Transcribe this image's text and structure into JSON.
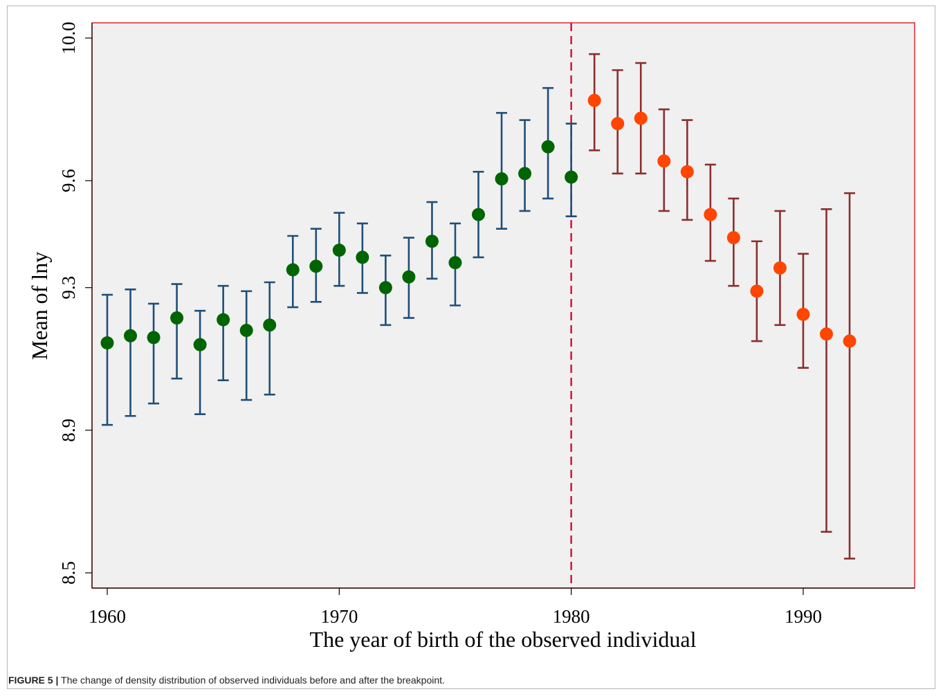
{
  "chart_data": {
    "type": "scatter",
    "title": "",
    "xlabel": "The year of birth of the observed individual",
    "ylabel": "Mean of lny",
    "xlim": [
      1960,
      1992
    ],
    "ylim": [
      8.5,
      10.0
    ],
    "xticks": [
      1960,
      1970,
      1980,
      1990
    ],
    "yticks": [
      8.5,
      8.9,
      9.3,
      9.6,
      10.0
    ],
    "ytick_labels": [
      "8.5",
      "8.9",
      "9.3",
      "9.6",
      "10.0"
    ],
    "breakpoint": 1980,
    "grid": false,
    "legend": "none",
    "series": [
      {
        "x": [
          1960,
          1961,
          1962,
          1963,
          1964,
          1965,
          1966,
          1967,
          1968,
          1969,
          1970,
          1971,
          1972,
          1973,
          1974,
          1975,
          1976,
          1977,
          1978,
          1979,
          1980
        ],
        "y": [
          9.145,
          9.165,
          9.16,
          9.215,
          9.14,
          9.21,
          9.18,
          9.195,
          9.35,
          9.36,
          9.405,
          9.385,
          9.3,
          9.33,
          9.43,
          9.37,
          9.505,
          9.605,
          9.62,
          9.695,
          9.61
        ],
        "lower": [
          8.915,
          8.94,
          8.975,
          9.045,
          8.945,
          9.04,
          8.985,
          9.0,
          9.245,
          9.26,
          9.305,
          9.285,
          9.195,
          9.215,
          9.325,
          9.25,
          9.385,
          9.465,
          9.515,
          9.55,
          9.5
        ],
        "upper": [
          9.28,
          9.295,
          9.255,
          9.31,
          9.235,
          9.305,
          9.29,
          9.315,
          9.445,
          9.465,
          9.51,
          9.48,
          9.39,
          9.44,
          9.54,
          9.48,
          9.625,
          9.79,
          9.77,
          9.86,
          9.76
        ],
        "color": "#006400",
        "bar_color": "#1f4e79"
      },
      {
        "x": [
          1981,
          1982,
          1983,
          1984,
          1985,
          1986,
          1987,
          1988,
          1989,
          1990,
          1991,
          1992
        ],
        "y": [
          9.825,
          9.76,
          9.775,
          9.655,
          9.625,
          9.505,
          9.44,
          9.29,
          9.355,
          9.225,
          9.17,
          9.15
        ],
        "lower": [
          9.685,
          9.62,
          9.62,
          9.515,
          9.49,
          9.375,
          9.305,
          9.15,
          9.195,
          9.075,
          8.615,
          8.54
        ],
        "upper": [
          9.955,
          9.91,
          9.93,
          9.8,
          9.77,
          9.645,
          9.55,
          9.43,
          9.515,
          9.395,
          9.52,
          9.565
        ],
        "color": "#ff4500",
        "bar_color": "#8b2e2e"
      }
    ]
  },
  "caption": {
    "label": "FIGURE 5 |",
    "text": "The change of density distribution of observed individuals before and after the breakpoint."
  },
  "colors": {
    "plot_background": "#f0f0f0",
    "plot_border": "#e0262e",
    "breakpoint_line": "#d0143c"
  }
}
